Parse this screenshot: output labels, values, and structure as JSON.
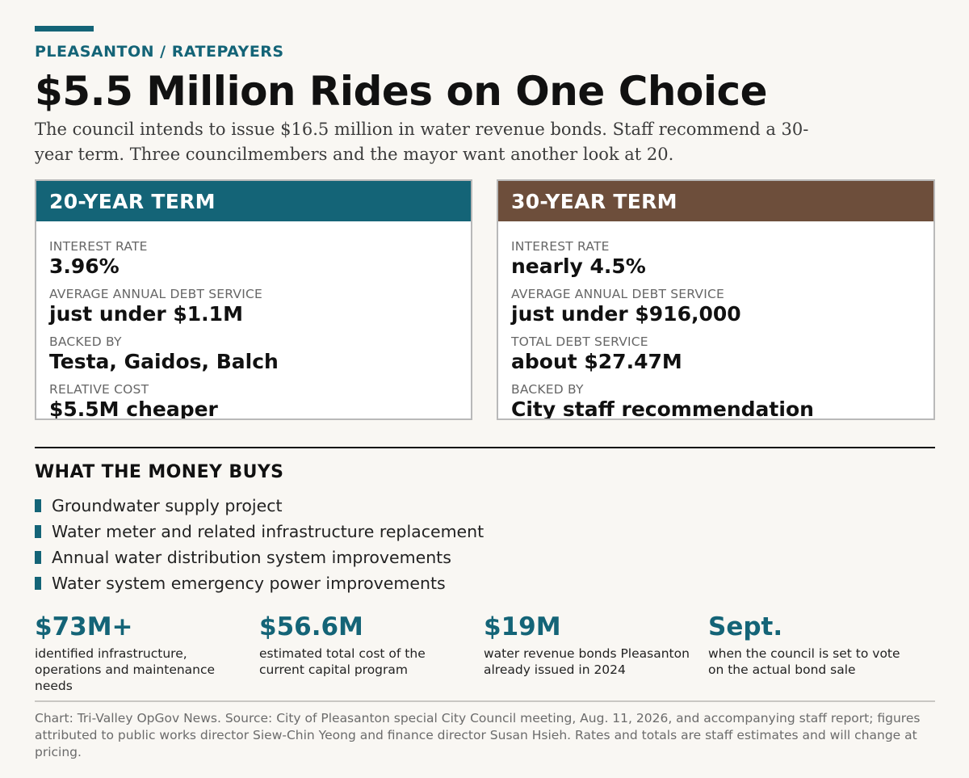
{
  "kicker": "PLEASANTON / RATEPAYERS",
  "headline": "$5.5 Million Rides on One Choice",
  "dek": "The council intends to issue $16.5 million in water revenue bonds. Staff recommend a 30-year term. Three councilmembers and the mayor want another look at 20.",
  "colors": {
    "accent": "#146477",
    "term_20": "#146477",
    "term_30": "#6d4e3b"
  },
  "cards": [
    {
      "title": "20-YEAR TERM",
      "rows": [
        {
          "label": "INTEREST RATE",
          "value": "3.96%"
        },
        {
          "label": "AVERAGE ANNUAL DEBT SERVICE",
          "value": "just under $1.1M"
        },
        {
          "label": "BACKED BY",
          "value": "Testa, Gaidos, Balch"
        },
        {
          "label": "RELATIVE COST",
          "value": "$5.5M cheaper"
        }
      ]
    },
    {
      "title": "30-YEAR TERM",
      "rows": [
        {
          "label": "INTEREST RATE",
          "value": "nearly 4.5%"
        },
        {
          "label": "AVERAGE ANNUAL DEBT SERVICE",
          "value": "just under $916,000"
        },
        {
          "label": "TOTAL DEBT SERVICE",
          "value": "about $27.47M"
        },
        {
          "label": "BACKED BY",
          "value": "City staff recommendation"
        }
      ]
    }
  ],
  "money_buys": {
    "title": "WHAT THE MONEY BUYS",
    "items": [
      "Groundwater supply project",
      "Water meter and related infrastructure replacement",
      "Annual water distribution system improvements",
      "Water system emergency power improvements"
    ]
  },
  "stats": [
    {
      "value": "$73M+",
      "desc": "identified infrastructure, operations and maintenance needs"
    },
    {
      "value": "$56.6M",
      "desc": "estimated total cost of the current capital program"
    },
    {
      "value": "$19M",
      "desc": "water revenue bonds Pleasanton already issued in 2024"
    },
    {
      "value": "Sept.",
      "desc": "when the council is set to vote on the actual bond sale"
    }
  ],
  "source": "Chart: Tri-Valley OpGov News. Source: City of Pleasanton special City Council meeting, Aug. 11, 2026, and accompanying staff report; figures attributed to public works director Siew-Chin Yeong and finance director Susan Hsieh. Rates and totals are staff estimates and will change at pricing."
}
